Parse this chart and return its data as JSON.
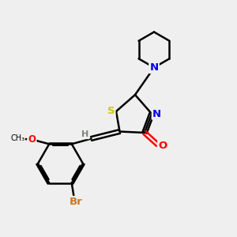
{
  "bg_color": "#efefef",
  "atom_colors": {
    "S": "#cccc00",
    "N": "#0000ee",
    "O": "#ff0000",
    "Br": "#cc7722",
    "C": "#000000",
    "H": "#778877"
  },
  "bond_color": "#000000",
  "bond_lw": 1.8,
  "font_size": 9.5
}
